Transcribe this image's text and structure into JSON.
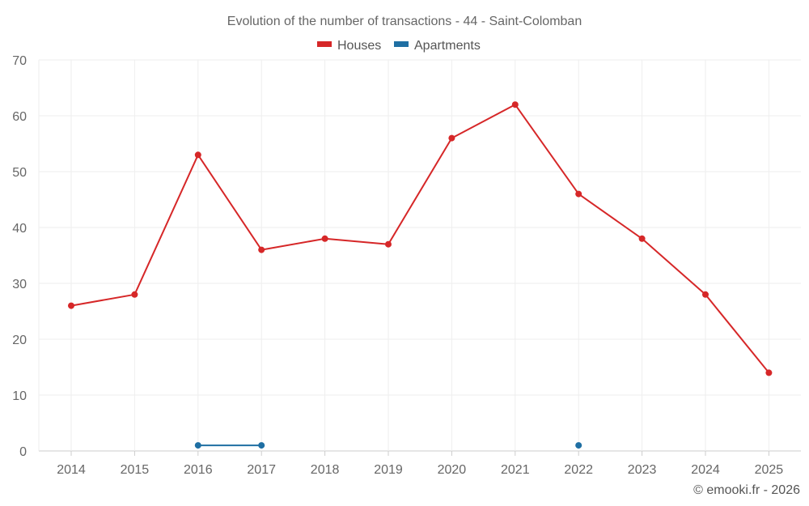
{
  "chart_data": {
    "type": "line",
    "title": "Evolution of the number of transactions - 44 - Saint-Colomban",
    "categories": [
      "2014",
      "2015",
      "2016",
      "2017",
      "2018",
      "2019",
      "2020",
      "2021",
      "2022",
      "2023",
      "2024",
      "2025"
    ],
    "ylim": [
      0,
      70
    ],
    "yticks": [
      0,
      10,
      20,
      30,
      40,
      50,
      60,
      70
    ],
    "grid": true,
    "legend_position": "top-center",
    "series": [
      {
        "name": "Houses",
        "color": "#d62728",
        "values": [
          26,
          28,
          53,
          36,
          38,
          37,
          56,
          62,
          46,
          38,
          28,
          14
        ]
      },
      {
        "name": "Apartments",
        "color": "#1f6fa3",
        "values": [
          null,
          null,
          1,
          1,
          null,
          null,
          null,
          null,
          1,
          null,
          null,
          null
        ]
      }
    ]
  },
  "credit": "© emooki.fr - 2026"
}
